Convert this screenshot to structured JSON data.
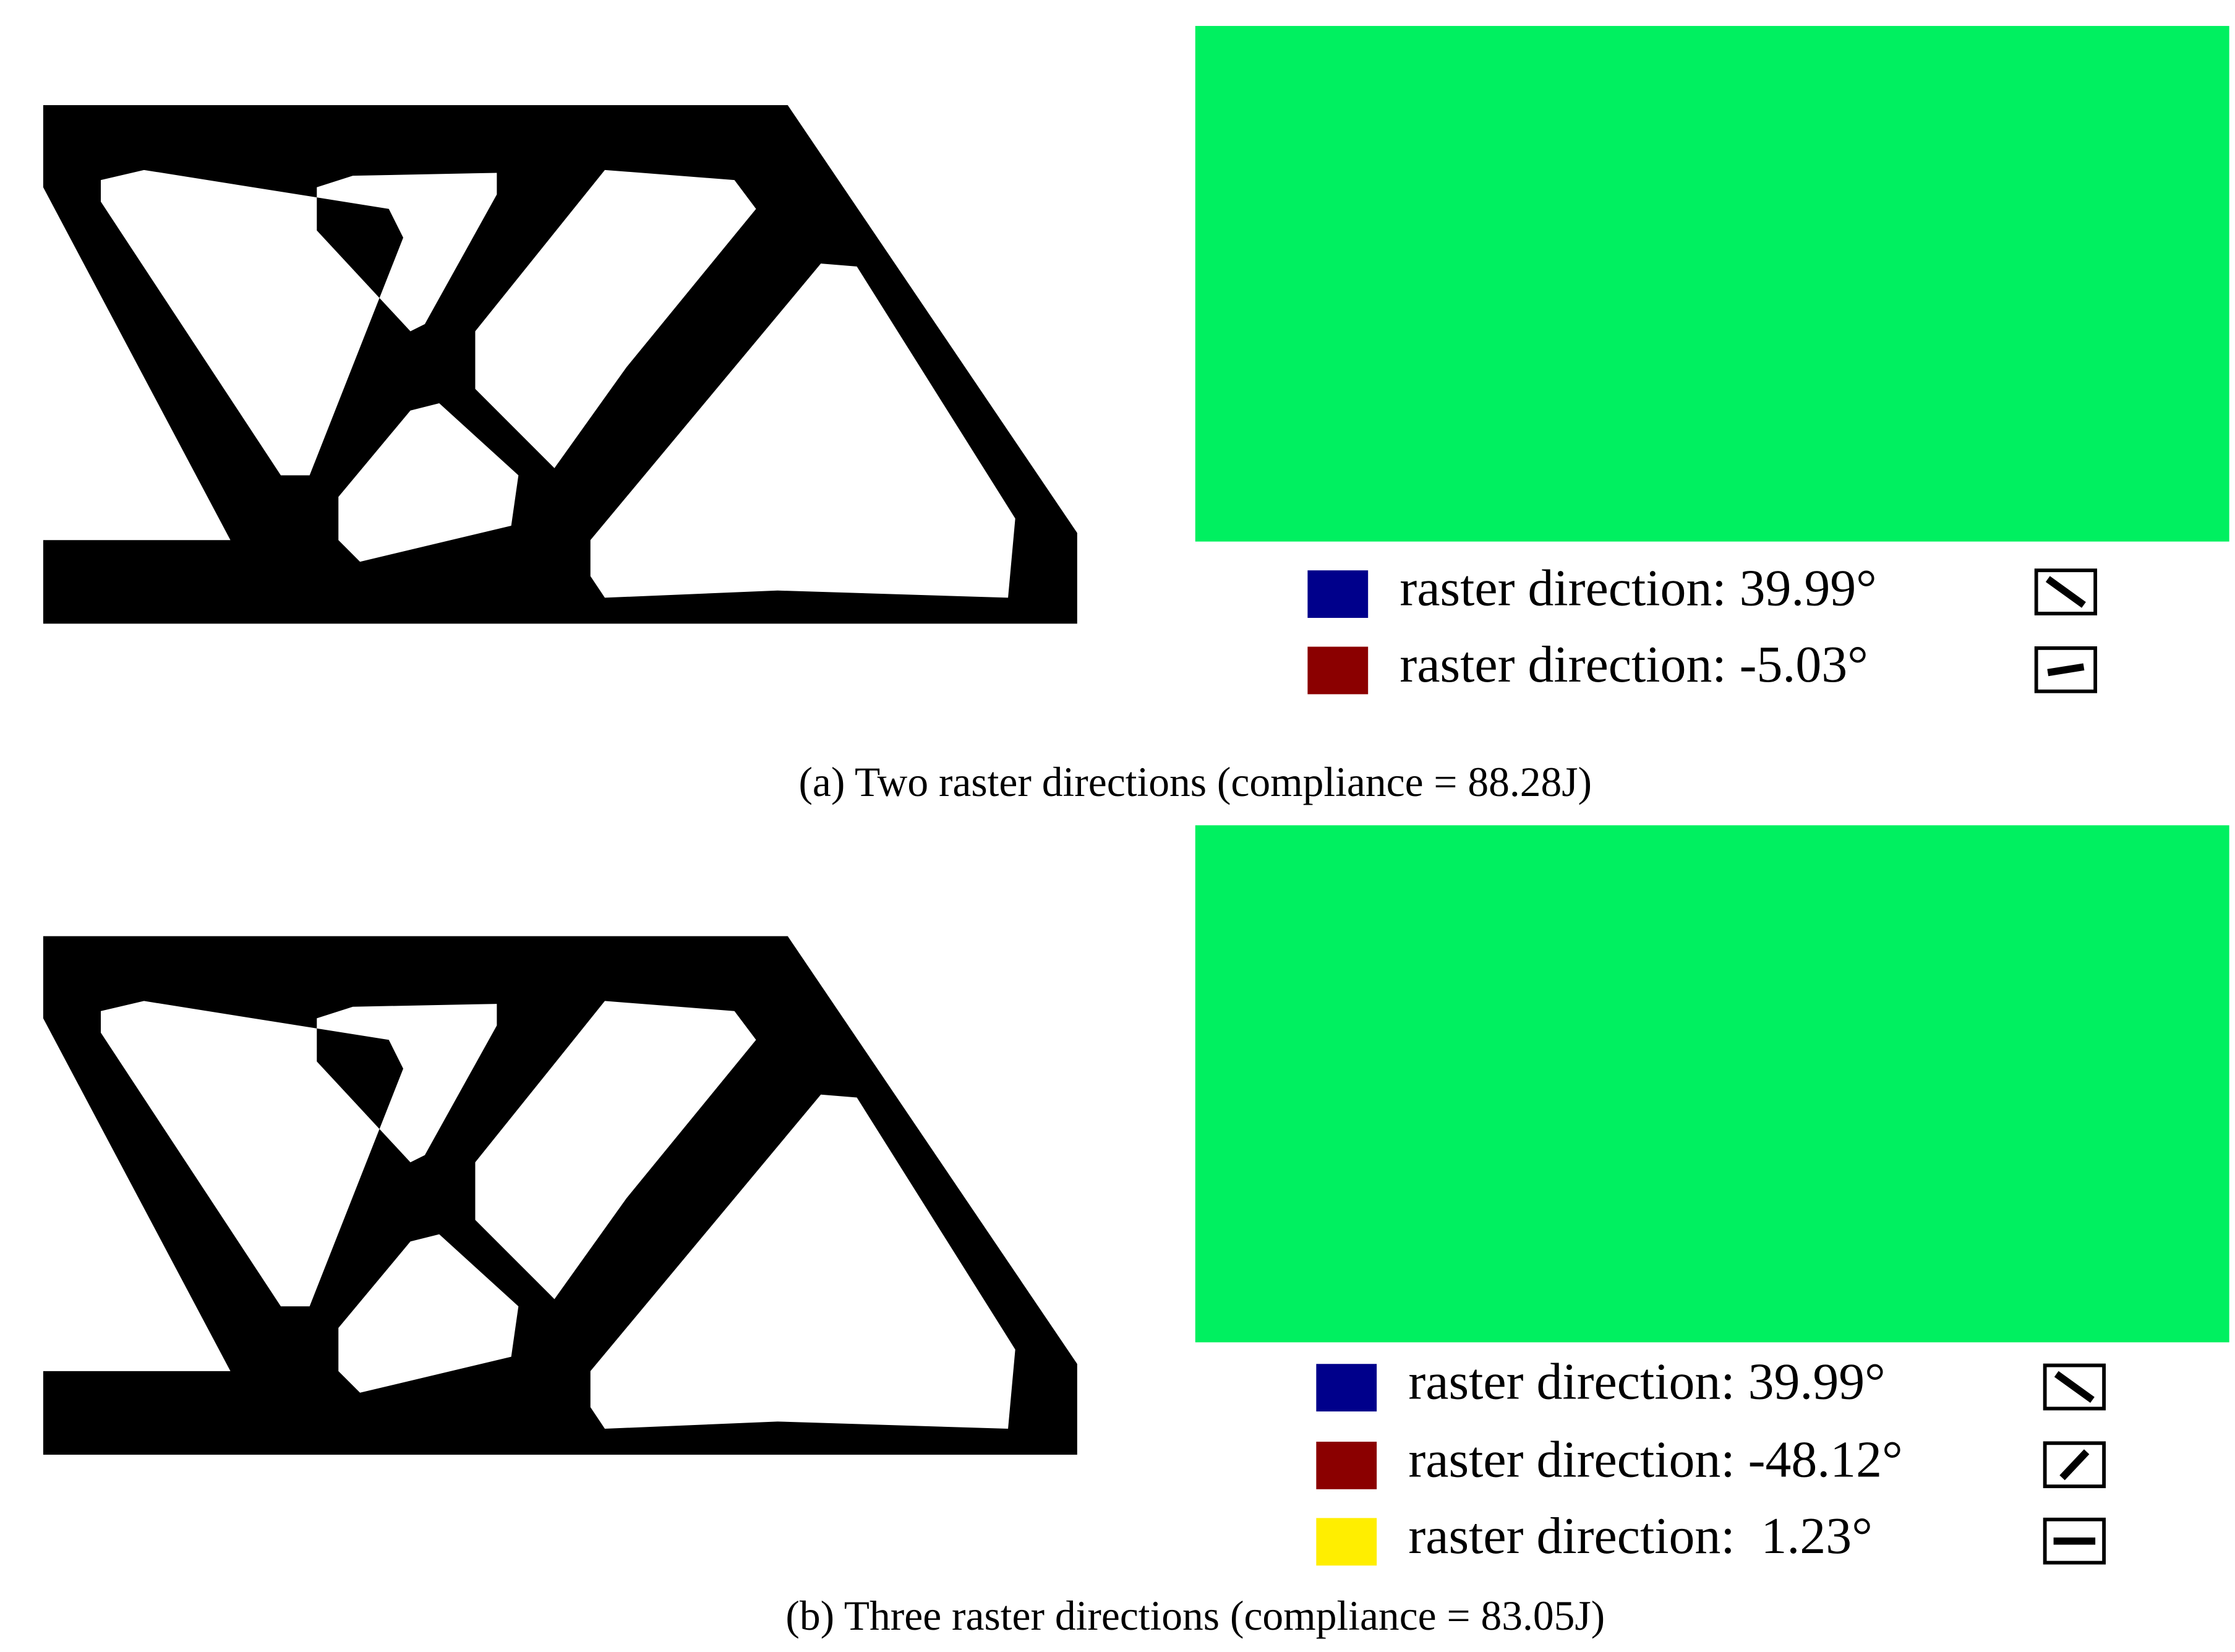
{
  "panels": [
    {
      "caption": "(a) Two raster directions (compliance = 88.28J)",
      "legend": [
        {
          "label": "raster direction: 39.99°",
          "color": "#00008b"
        },
        {
          "label": "raster direction: -5.03°",
          "color": "#8b0000"
        }
      ]
    },
    {
      "caption": "(b) Three raster directions (compliance = 83.05J)",
      "legend": [
        {
          "label": "raster direction: 39.99°",
          "color": "#00008b"
        },
        {
          "label": "raster direction: -48.12°",
          "color": "#8b0000"
        },
        {
          "label": "raster direction:  1.23°",
          "color": "#ffee00"
        }
      ]
    }
  ]
}
